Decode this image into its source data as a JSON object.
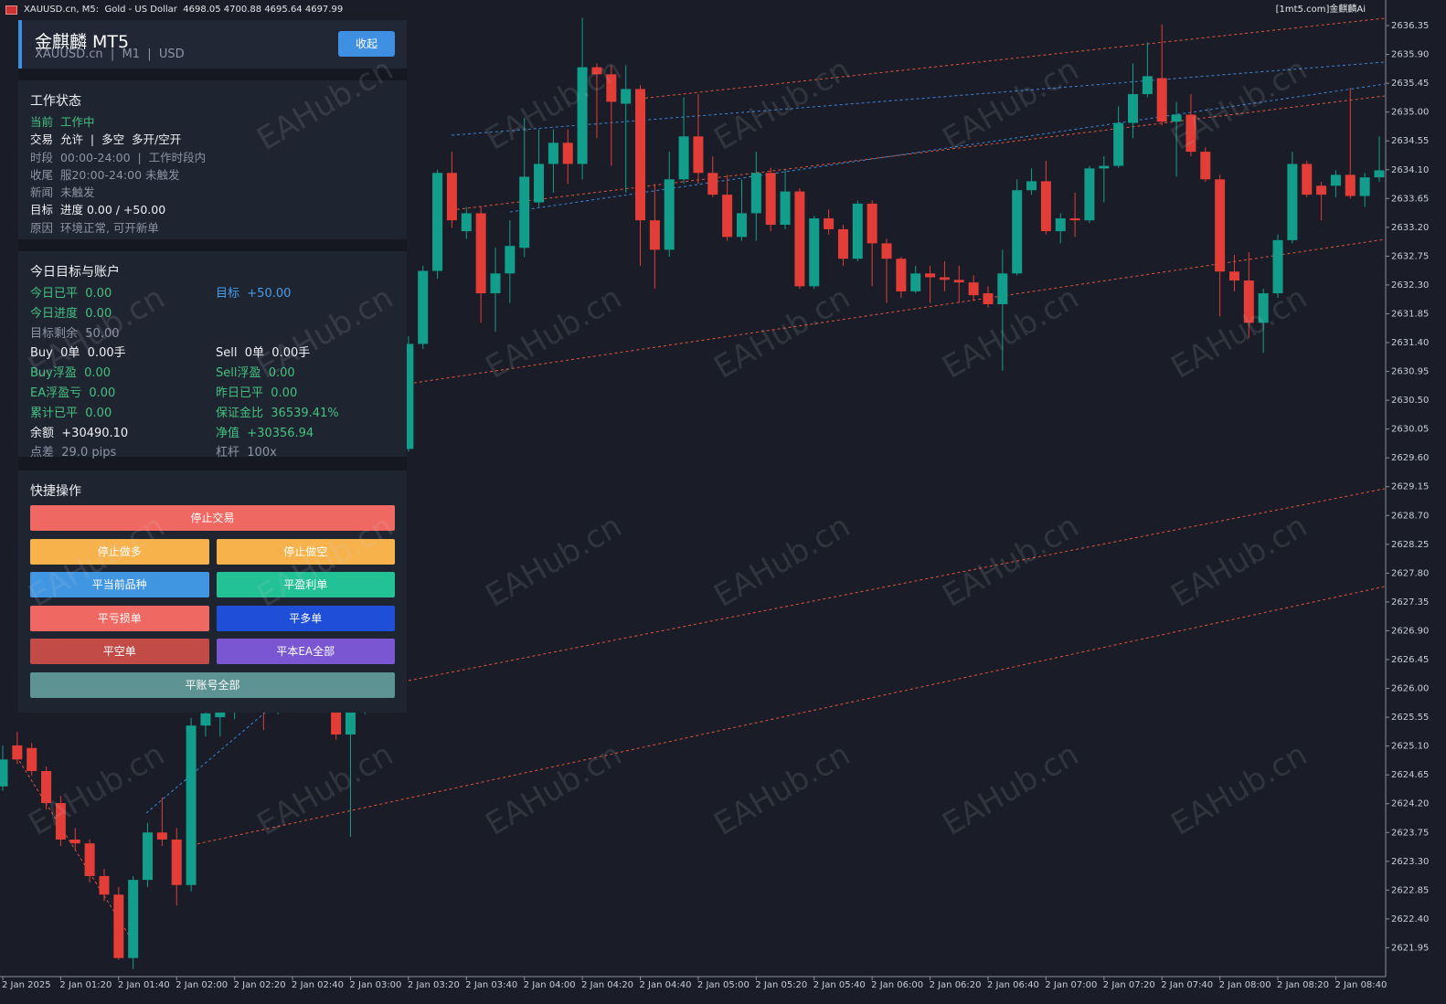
{
  "window": {
    "symbol": "XAUUSD.cn, M5:",
    "description": "Gold - US Dollar",
    "ohlc": "4698.05 4700.88 4695.64 4697.99",
    "brand": "[1mt5.com]金麒麟Ai"
  },
  "watermark": "EAHub.cn",
  "panel": {
    "header": {
      "title": "金麒麟 MT5",
      "subtitle": "XAUUSD.cn  |  M1  |  USD",
      "button": "收起"
    },
    "status": {
      "title": "工作状态",
      "rows": [
        {
          "label": "当前",
          "value": "工作中",
          "color": "#45c07f"
        },
        {
          "label": "交易",
          "value": "允许  |  多空  多开/空开",
          "color": "#eef0f4"
        },
        {
          "label": "时段",
          "value": "00:00-24:00  |  工作时段内",
          "color": "#8d94a3"
        },
        {
          "label": "收尾",
          "value": "服20:00-24:00 未触发",
          "color": "#8d94a3"
        },
        {
          "label": "新闻",
          "value": "未触发",
          "color": "#8d94a3"
        },
        {
          "label": "目标",
          "value": "进度 0.00 / +50.00",
          "color": "#eef0f4"
        },
        {
          "label": "原因",
          "value": "环境正常, 可开新单",
          "color": "#8d94a3"
        }
      ]
    },
    "account": {
      "title": "今日目标与账户",
      "rows": [
        [
          {
            "label": "今日已平",
            "value": "0.00",
            "color": "#45c07f"
          },
          {
            "label": "目标",
            "value": "+50.00",
            "color": "#4a9de8"
          }
        ],
        [
          {
            "label": "今日进度",
            "value": "0.00",
            "color": "#45c07f"
          }
        ],
        [
          {
            "label": "目标剩余",
            "value": "50.00",
            "color": "#8d94a3"
          }
        ],
        [
          {
            "label": "Buy",
            "value": "0单  0.00手",
            "color": "#eef0f4"
          },
          {
            "label": "Sell",
            "value": "0单  0.00手",
            "color": "#eef0f4"
          }
        ],
        [
          {
            "label": "Buy浮盈",
            "value": "0.00",
            "color": "#45c07f"
          },
          {
            "label": "Sell浮盈",
            "value": "0.00",
            "color": "#45c07f"
          }
        ],
        [
          {
            "label": "EA浮盈亏",
            "value": "0.00",
            "color": "#45c07f"
          },
          {
            "label": "昨日已平",
            "value": "0.00",
            "color": "#45c07f"
          }
        ],
        [
          {
            "label": "累计已平",
            "value": "0.00",
            "color": "#45c07f"
          },
          {
            "label": "保证金比",
            "value": "36539.41%",
            "color": "#45c07f"
          }
        ],
        [
          {
            "label": "余额",
            "value": "+30490.10",
            "color": "#eef0f4"
          },
          {
            "label": "净值",
            "value": "+30356.94",
            "color": "#45c07f"
          }
        ],
        [
          {
            "label": "点差",
            "value": "29.0 pips",
            "color": "#8d94a3"
          },
          {
            "label": "杠杆",
            "value": "100x",
            "color": "#8d94a3"
          }
        ]
      ]
    },
    "actions": {
      "title": "快捷操作",
      "rows": [
        [
          {
            "label": "停止交易",
            "color": "#f06862"
          }
        ],
        [
          {
            "label": "停止做多",
            "color": "#f7b24c"
          },
          {
            "label": "停止做空",
            "color": "#f7b24c"
          }
        ],
        [
          {
            "label": "平当前品种",
            "color": "#4196e2"
          },
          {
            "label": "平盈利单",
            "color": "#22c196"
          }
        ],
        [
          {
            "label": "平亏损单",
            "color": "#f06862"
          },
          {
            "label": "平多单",
            "color": "#1f4fd9"
          }
        ],
        [
          {
            "label": "平空单",
            "color": "#c24b48"
          },
          {
            "label": "平本EA全部",
            "color": "#7a56d2"
          }
        ],
        [
          {
            "label": "平账号全部",
            "color": "#5e9393"
          }
        ]
      ]
    }
  },
  "chart_data": {
    "type": "candlestick",
    "up_color": "#139e8b",
    "down_color": "#e23d36",
    "grid": false,
    "ylim": [
      2621.5,
      2636.75
    ],
    "yticks": [
      2636.35,
      {
        "value": 2635.9,
        "label": "2635.90"
      },
      2635.45,
      {
        "value": 2635.0,
        "label": "2635.00"
      },
      2634.55,
      {
        "value": 2634.1,
        "label": "2634.10"
      },
      2633.65,
      {
        "value": 2633.2,
        "label": "2633.20"
      },
      2632.75,
      {
        "value": 2632.3,
        "label": "2632.30"
      },
      2631.85,
      {
        "value": 2631.4,
        "label": "2631.40"
      },
      2630.95,
      {
        "value": 2630.5,
        "label": "2630.50"
      },
      2630.05,
      {
        "value": 2629.6,
        "label": "2629.60"
      },
      2629.15,
      {
        "value": 2628.7,
        "label": "2628.70"
      },
      2628.25,
      {
        "value": 2627.8,
        "label": "2627.80"
      },
      2627.35,
      {
        "value": 2626.9,
        "label": "2626.90"
      },
      2626.45,
      {
        "value": 2626.0,
        "label": "2626.00"
      },
      2625.55,
      {
        "value": 2625.1,
        "label": "2625.10"
      },
      2624.65,
      {
        "value": 2624.2,
        "label": "2624.20"
      },
      2623.75,
      {
        "value": 2623.3,
        "label": "2623.30"
      },
      2622.85,
      {
        "value": 2622.4,
        "label": "2622.40"
      },
      2621.95
    ],
    "categories": [
      "2 Jan 2025",
      null,
      null,
      null,
      "2 Jan 01:20",
      null,
      null,
      null,
      "2 Jan 01:40",
      null,
      null,
      null,
      "2 Jan 02:00",
      null,
      null,
      null,
      "2 Jan 02:20",
      null,
      null,
      null,
      "2 Jan 02:40",
      null,
      null,
      null,
      "2 Jan 03:00",
      null,
      null,
      null,
      "2 Jan 03:20",
      null,
      null,
      null,
      "2 Jan 03:40",
      null,
      null,
      null,
      "2 Jan 04:00",
      null,
      null,
      null,
      "2 Jan 04:20",
      null,
      null,
      null,
      "2 Jan 04:40",
      null,
      null,
      null,
      "2 Jan 05:00",
      null,
      null,
      null,
      "2 Jan 05:20",
      null,
      null,
      null,
      "2 Jan 05:40",
      null,
      null,
      null,
      "2 Jan 06:00",
      null,
      null,
      null,
      "2 Jan 06:20",
      null,
      null,
      null,
      "2 Jan 06:40",
      null,
      null,
      null,
      "2 Jan 07:00",
      null,
      null,
      null,
      "2 Jan 07:20",
      null,
      null,
      null,
      "2 Jan 07:40",
      null,
      null,
      null,
      "2 Jan 08:00",
      null,
      null,
      null,
      "2 Jan 08:20",
      null,
      null,
      null,
      "2 Jan 08:40",
      null,
      null,
      null
    ],
    "open": [
      2624.47,
      2625.11,
      2625.07,
      2624.71,
      2624.21,
      2623.64,
      2623.58,
      2623.07,
      2622.78,
      2621.79,
      2623.01,
      2623.75,
      2623.64,
      2622.93,
      2625.42,
      2625.55,
      2625.8,
      2626.1,
      2625.9,
      2625.7,
      2626.05,
      2626.3,
      2626.1,
      2626.0,
      2625.28,
      2625.75,
      2627.5,
      2629.2,
      2629.74,
      2631.38,
      2632.52,
      2634.05,
      2633.14,
      2633.42,
      2632.17,
      2632.48,
      2632.88,
      2633.59,
      2634.19,
      2634.52,
      2634.19,
      2635.7,
      2635.59,
      2635.13,
      2635.36,
      2633.31,
      2632.85,
      2633.95,
      2634.62,
      2634.05,
      2633.71,
      2633.05,
      2633.42,
      2634.05,
      2633.24,
      2633.76,
      2632.28,
      2633.34,
      2633.17,
      2632.71,
      2633.57,
      2632.95,
      2632.71,
      2632.2,
      2632.48,
      2632.42,
      2632.38,
      2632.34,
      2632.17,
      2632.0,
      2632.48,
      2633.78,
      2633.92,
      2633.14,
      2633.34,
      2633.31,
      2634.12,
      2634.16,
      2634.83,
      2635.28,
      2635.53,
      2634.85,
      2634.96,
      2634.38,
      2633.95,
      2632.51,
      2632.37,
      2631.71,
      2632.17,
      2633.0,
      2634.19,
      2633.85,
      2633.85,
      2634.02,
      2633.69,
      2633.98
    ],
    "high": [
      2625.11,
      2625.32,
      2625.15,
      2624.78,
      2624.32,
      2623.82,
      2623.64,
      2623.18,
      2622.9,
      2623.07,
      2623.9,
      2624.3,
      2623.82,
      2625.54,
      2625.75,
      2625.9,
      2626.2,
      2626.25,
      2626.0,
      2626.15,
      2626.4,
      2626.45,
      2626.2,
      2626.1,
      2626.4,
      2627.6,
      2629.3,
      2630.95,
      2631.5,
      2632.6,
      2634.1,
      2634.38,
      2633.52,
      2633.52,
      2632.88,
      2633.31,
      2634.91,
      2634.73,
      2634.73,
      2634.73,
      2636.47,
      2635.76,
      2635.73,
      2635.73,
      2635.42,
      2633.88,
      2634.38,
      2635.23,
      2635.28,
      2634.31,
      2634.02,
      2633.95,
      2634.38,
      2634.13,
      2634.1,
      2633.81,
      2633.38,
      2633.48,
      2633.24,
      2633.62,
      2633.62,
      2633.02,
      2632.74,
      2632.6,
      2632.6,
      2632.67,
      2632.6,
      2632.45,
      2632.28,
      2632.85,
      2633.95,
      2634.12,
      2634.24,
      2633.42,
      2633.74,
      2634.16,
      2634.31,
      2635.09,
      2635.76,
      2636.09,
      2636.37,
      2635.16,
      2635.28,
      2634.45,
      2634.02,
      2632.77,
      2632.81,
      2632.24,
      2633.09,
      2634.38,
      2634.24,
      2633.91,
      2634.09,
      2635.38,
      2634.05,
      2634.62
    ],
    "low": [
      2624.4,
      2624.82,
      2624.64,
      2624.11,
      2623.54,
      2623.47,
      2622.97,
      2622.68,
      2621.76,
      2621.62,
      2622.9,
      2623.54,
      2622.61,
      2622.83,
      2625.25,
      2625.25,
      2625.52,
      2625.75,
      2625.35,
      2625.6,
      2625.95,
      2626.0,
      2625.7,
      2625.2,
      2623.68,
      2625.6,
      2627.4,
      2629.1,
      2629.7,
      2631.3,
      2632.4,
      2633.19,
      2633.02,
      2631.71,
      2631.57,
      2632.02,
      2632.74,
      2633.52,
      2633.74,
      2633.88,
      2633.95,
      2634.59,
      2634.16,
      2633.74,
      2632.6,
      2632.24,
      2632.74,
      2633.88,
      2633.88,
      2633.67,
      2632.99,
      2632.99,
      2632.99,
      2633.14,
      2633.17,
      2632.24,
      2632.24,
      2633.09,
      2632.6,
      2632.67,
      2632.28,
      2632.02,
      2632.1,
      2632.17,
      2632.02,
      2632.2,
      2632.02,
      2632.05,
      2631.95,
      2630.96,
      2632.45,
      2633.71,
      2633.09,
      2632.95,
      2633.05,
      2633.27,
      2633.59,
      2634.13,
      2634.59,
      2635.23,
      2634.79,
      2633.99,
      2634.31,
      2633.91,
      2631.81,
      2632.2,
      2631.48,
      2631.24,
      2632.1,
      2632.95,
      2633.67,
      2633.31,
      2633.67,
      2633.65,
      2633.52,
      2633.91
    ],
    "close": [
      2624.89,
      2624.89,
      2624.71,
      2624.21,
      2623.64,
      2623.58,
      2623.07,
      2622.78,
      2621.79,
      2623.01,
      2623.75,
      2623.64,
      2622.93,
      2625.42,
      2625.61,
      2625.8,
      2626.1,
      2625.9,
      2625.7,
      2626.05,
      2626.3,
      2626.1,
      2625.8,
      2625.28,
      2625.75,
      2627.5,
      2629.2,
      2630.8,
      2631.38,
      2632.52,
      2634.05,
      2633.31,
      2633.42,
      2632.17,
      2632.48,
      2632.91,
      2633.99,
      2634.19,
      2634.52,
      2634.19,
      2635.7,
      2635.59,
      2635.16,
      2635.36,
      2633.31,
      2632.85,
      2633.95,
      2634.62,
      2634.05,
      2633.71,
      2633.05,
      2633.42,
      2634.05,
      2633.24,
      2633.76,
      2632.28,
      2633.34,
      2633.17,
      2632.71,
      2633.57,
      2632.95,
      2632.71,
      2632.2,
      2632.48,
      2632.42,
      2632.38,
      2632.34,
      2632.14,
      2632.0,
      2632.48,
      2633.78,
      2633.92,
      2633.14,
      2633.34,
      2633.31,
      2634.12,
      2634.16,
      2634.83,
      2635.28,
      2635.56,
      2634.85,
      2634.96,
      2634.38,
      2633.95,
      2632.51,
      2632.37,
      2631.71,
      2632.17,
      2633.0,
      2634.19,
      2633.71,
      2633.71,
      2634.02,
      2633.69,
      2633.98,
      2634.09
    ]
  }
}
